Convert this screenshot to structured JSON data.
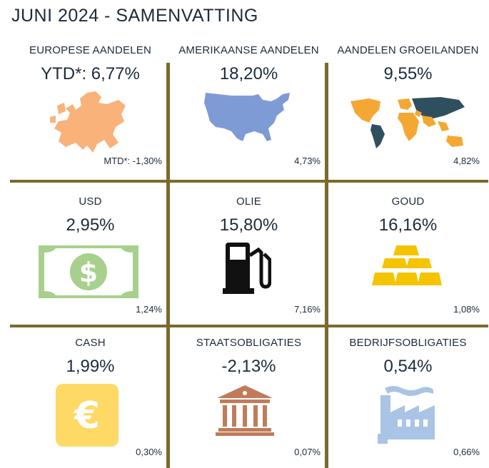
{
  "title": "JUNI 2024 - SAMENVATTING",
  "colors": {
    "divider": "#7a6a2c",
    "text": "#1c2b3a"
  },
  "cells": [
    {
      "label": "EUROPESE AANDELEN",
      "ytd": "YTD*: 6,77%",
      "mtd": "MTD*: -1,30%",
      "icon": "europe-map-icon",
      "color": "#f9b27a"
    },
    {
      "label": "AMERIKAANSE AANDELEN",
      "ytd": "18,20%",
      "mtd": "4,73%",
      "icon": "usa-map-icon",
      "color": "#7f9bd6"
    },
    {
      "label": "AANDELEN GROEILANDEN",
      "ytd": "9,55%",
      "mtd": "4,82%",
      "icon": "world-map-icon",
      "color": "#f4a833"
    },
    {
      "label": "USD",
      "ytd": "2,95%",
      "mtd": "1,24%",
      "icon": "dollar-bill-icon",
      "color": "#a8d08d"
    },
    {
      "label": "OLIE",
      "ytd": "15,80%",
      "mtd": "7,16%",
      "icon": "fuel-pump-icon",
      "color": "#111111"
    },
    {
      "label": "GOUD",
      "ytd": "16,16%",
      "mtd": "1,08%",
      "icon": "gold-bars-icon",
      "color": "#f5c400"
    },
    {
      "label": "CASH",
      "ytd": "1,99%",
      "mtd": "0,30%",
      "icon": "euro-icon",
      "color": "#ffd966"
    },
    {
      "label": "STAATSOBLIGATIES",
      "ytd": "-2,13%",
      "mtd": "0,07%",
      "icon": "bank-building-icon",
      "color": "#c07c5a"
    },
    {
      "label": "BEDRIJFSOBLIGATIES",
      "ytd": "0,54%",
      "mtd": "0,66%",
      "icon": "factory-icon",
      "color": "#a9c4e4"
    }
  ]
}
